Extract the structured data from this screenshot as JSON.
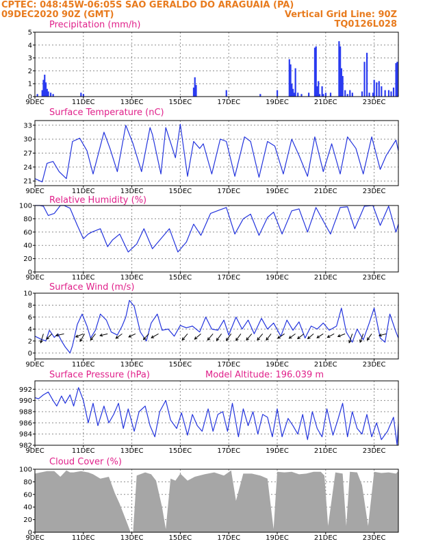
{
  "header": {
    "left_line1": "CPTEC:   048:45W-06:05S  SAO GERALDO DO ARAGUAIA (PA)",
    "left_line2": "09DEC2020 90Z (GMT)",
    "right_line2": "Vertical Grid Line: 90Z",
    "right_line3": "TQ0126L028"
  },
  "x_tick_labels": [
    "9DEC",
    "11DEC",
    "13DEC",
    "15DEC",
    "17DEC",
    "19DEC",
    "21DEC",
    "23DEC"
  ],
  "colors": {
    "header": "#e87b1e",
    "title": "#e0208a",
    "line": "#2233dd",
    "bar": "#2a3bf0",
    "cloud": "#a6a6a6",
    "arrow": "#000000"
  },
  "chart_data": [
    {
      "id": "precipitation",
      "type": "bar",
      "title": "Precipitation (mm/h)",
      "x_range": [
        9,
        24
      ],
      "ylim": [
        0,
        5
      ],
      "yticks": [
        0,
        1,
        2,
        3,
        4,
        5
      ],
      "grid": true,
      "x": [
        9.1,
        9.3,
        9.35,
        9.4,
        9.45,
        9.5,
        9.55,
        9.65,
        9.75,
        10.9,
        11.0,
        15.55,
        15.6,
        15.65,
        16.9,
        18.3,
        19.0,
        19.5,
        19.55,
        19.6,
        19.65,
        19.7,
        19.75,
        19.85,
        20.0,
        20.3,
        20.55,
        20.6,
        20.65,
        20.7,
        20.75,
        20.85,
        20.9,
        21.0,
        21.2,
        21.55,
        21.6,
        21.65,
        21.7,
        21.8,
        21.9,
        22.0,
        22.1,
        22.5,
        22.6,
        22.7,
        22.8,
        22.95,
        23.0,
        23.1,
        23.2,
        23.3,
        23.45,
        23.6,
        23.7,
        23.8,
        23.9,
        23.95
      ],
      "values": [
        0.2,
        0.5,
        1.3,
        1.7,
        1.1,
        0.6,
        0.4,
        0.3,
        0.2,
        0.3,
        0.2,
        0.7,
        1.5,
        0.9,
        0.5,
        0.2,
        0.5,
        2.9,
        2.5,
        1.0,
        0.6,
        0.3,
        2.2,
        0.3,
        0.2,
        0.3,
        3.8,
        3.9,
        0.8,
        1.2,
        0.2,
        0.8,
        0.2,
        0.3,
        0.3,
        4.3,
        3.9,
        2.2,
        1.6,
        0.5,
        0.2,
        0.5,
        0.3,
        0.4,
        2.7,
        3.4,
        0.3,
        0.3,
        1.3,
        1.1,
        1.2,
        0.8,
        0.5,
        0.5,
        0.4,
        0.7,
        2.6,
        2.7
      ]
    },
    {
      "id": "temperature",
      "type": "line",
      "title": "Surface Temperature (nC)",
      "x_range": [
        9,
        24
      ],
      "ylim": [
        20,
        34
      ],
      "yticks": [
        21,
        24,
        27,
        30,
        33
      ],
      "grid": true,
      "x": [
        9.0,
        9.3,
        9.5,
        9.75,
        10.0,
        10.3,
        10.55,
        10.85,
        11.15,
        11.4,
        11.7,
        11.85,
        12.1,
        12.4,
        12.75,
        13.05,
        13.4,
        13.75,
        13.85,
        14.2,
        14.4,
        14.8,
        15.0,
        15.3,
        15.55,
        15.8,
        15.95,
        16.3,
        16.65,
        16.9,
        17.25,
        17.65,
        17.9,
        18.25,
        18.6,
        18.9,
        19.25,
        19.6,
        19.9,
        20.25,
        20.55,
        20.9,
        21.25,
        21.6,
        21.9,
        22.25,
        22.55,
        22.9,
        23.25,
        23.5,
        23.9,
        24.0
      ],
      "values": [
        21.5,
        20.8,
        24.8,
        25.2,
        23.0,
        21.5,
        29.5,
        30.2,
        27.5,
        22.5,
        28.5,
        31.5,
        28.0,
        23.0,
        33.0,
        29.0,
        23.0,
        32.5,
        31.0,
        22.5,
        32.5,
        26.0,
        33.2,
        22.0,
        29.5,
        28.0,
        29.0,
        22.5,
        30.0,
        29.5,
        22.0,
        30.5,
        29.5,
        21.8,
        29.5,
        28.5,
        22.5,
        30.0,
        26.5,
        22.0,
        30.5,
        23.0,
        29.0,
        22.5,
        30.5,
        28.0,
        22.5,
        30.5,
        23.5,
        26.5,
        29.8,
        27.5
      ]
    },
    {
      "id": "humidity",
      "type": "line",
      "title": "Relative Humidity (%)",
      "x_range": [
        9,
        24
      ],
      "ylim": [
        0,
        100
      ],
      "yticks": [
        0,
        20,
        40,
        60,
        80,
        100
      ],
      "grid": true,
      "x": [
        9.0,
        9.2,
        9.35,
        9.55,
        9.8,
        10.05,
        10.2,
        10.45,
        10.75,
        11.0,
        11.2,
        11.35,
        11.7,
        12.0,
        12.2,
        12.5,
        12.85,
        13.2,
        13.5,
        13.85,
        14.2,
        14.55,
        14.9,
        15.25,
        15.55,
        15.85,
        16.25,
        16.6,
        16.9,
        17.25,
        17.6,
        17.9,
        18.25,
        18.6,
        18.85,
        19.2,
        19.6,
        19.9,
        20.25,
        20.6,
        20.85,
        21.2,
        21.6,
        21.9,
        22.2,
        22.6,
        22.95,
        23.25,
        23.6,
        23.9,
        24.0
      ],
      "values": [
        100,
        100,
        99,
        85,
        88,
        100,
        100,
        96,
        70,
        50,
        57,
        60,
        65,
        38,
        48,
        57,
        30,
        42,
        65,
        35,
        50,
        65,
        30,
        45,
        72,
        55,
        88,
        93,
        97,
        57,
        80,
        87,
        55,
        82,
        90,
        57,
        92,
        95,
        60,
        97,
        80,
        57,
        97,
        98,
        65,
        99,
        100,
        70,
        99,
        60,
        72
      ]
    },
    {
      "id": "wind",
      "type": "line",
      "title": "Surface Wind (m/s)",
      "x_range": [
        9,
        24
      ],
      "ylim": [
        -1,
        10
      ],
      "yticks": [
        0,
        2,
        4,
        6,
        8,
        10
      ],
      "grid": true,
      "x": [
        9.0,
        9.25,
        9.45,
        9.6,
        9.8,
        9.95,
        10.1,
        10.25,
        10.45,
        10.55,
        10.75,
        10.95,
        11.15,
        11.3,
        11.5,
        11.7,
        11.95,
        12.15,
        12.4,
        12.6,
        12.75,
        12.9,
        13.1,
        13.35,
        13.6,
        13.8,
        14.05,
        14.25,
        14.5,
        14.75,
        15.0,
        15.25,
        15.5,
        15.8,
        16.05,
        16.3,
        16.55,
        16.8,
        17.0,
        17.3,
        17.55,
        17.8,
        18.05,
        18.35,
        18.6,
        18.85,
        19.15,
        19.4,
        19.65,
        19.9,
        20.15,
        20.4,
        20.65,
        20.9,
        21.15,
        21.45,
        21.65,
        21.85,
        22.1,
        22.3,
        22.55,
        22.8,
        23.0,
        23.25,
        23.45,
        23.65,
        23.9,
        24.0
      ],
      "values": [
        2.8,
        2.3,
        2.0,
        3.8,
        2.6,
        3.2,
        2.0,
        1.0,
        0.0,
        1.2,
        4.8,
        6.5,
        4.5,
        2.5,
        3.8,
        6.5,
        5.5,
        3.5,
        3.0,
        4.5,
        6.0,
        8.8,
        7.8,
        3.5,
        2.0,
        5.0,
        6.5,
        3.8,
        4.0,
        2.8,
        4.6,
        4.2,
        4.5,
        3.5,
        6.0,
        4.0,
        3.8,
        5.5,
        3.0,
        6.0,
        4.0,
        5.5,
        3.2,
        5.8,
        4.0,
        5.0,
        2.8,
        5.5,
        3.8,
        5.2,
        2.5,
        4.5,
        4.0,
        5.0,
        3.8,
        4.5,
        7.5,
        3.5,
        1.8,
        4.0,
        2.2,
        5.0,
        7.5,
        2.5,
        1.8,
        6.5,
        3.5,
        2.5
      ],
      "arrows": [
        {
          "x": 9.35,
          "u": 0.3,
          "v": 1.0
        },
        {
          "x": 9.7,
          "u": 0.6,
          "v": 0.6
        },
        {
          "x": 10.2,
          "u": 0.9,
          "v": 0.2
        },
        {
          "x": 11.0,
          "u": 0.85,
          "v": 0.35
        },
        {
          "x": 11.05,
          "u": 0.5,
          "v": 0.85
        },
        {
          "x": 11.5,
          "u": 0.55,
          "v": 0.7
        },
        {
          "x": 12.0,
          "u": 0.85,
          "v": 0.2
        },
        {
          "x": 12.6,
          "u": 0.7,
          "v": 0.5
        },
        {
          "x": 13.15,
          "u": 0.75,
          "v": 0.35
        },
        {
          "x": 13.7,
          "u": 0.6,
          "v": 0.65
        },
        {
          "x": 14.1,
          "u": 0.8,
          "v": 0.45
        },
        {
          "x": 15.3,
          "u": 0.6,
          "v": 0.7
        },
        {
          "x": 15.85,
          "u": 0.7,
          "v": 0.6
        },
        {
          "x": 16.35,
          "u": 0.6,
          "v": 0.7
        },
        {
          "x": 16.7,
          "u": 0.55,
          "v": 0.75
        },
        {
          "x": 17.1,
          "u": 0.55,
          "v": 0.75
        },
        {
          "x": 17.5,
          "u": 0.55,
          "v": 0.75
        },
        {
          "x": 17.95,
          "u": 0.6,
          "v": 0.7
        },
        {
          "x": 18.4,
          "u": 0.6,
          "v": 0.7
        },
        {
          "x": 18.75,
          "u": 0.55,
          "v": 0.7
        },
        {
          "x": 19.3,
          "u": 0.75,
          "v": 0.5
        },
        {
          "x": 19.75,
          "u": 0.7,
          "v": 0.5
        },
        {
          "x": 20.1,
          "u": 0.7,
          "v": 0.55
        },
        {
          "x": 20.5,
          "u": 0.65,
          "v": 0.55
        },
        {
          "x": 20.9,
          "u": 0.7,
          "v": 0.45
        },
        {
          "x": 21.35,
          "u": 0.75,
          "v": 0.4
        },
        {
          "x": 21.8,
          "u": 0.8,
          "v": 0.3
        },
        {
          "x": 22.1,
          "u": 0.35,
          "v": 1.0
        },
        {
          "x": 22.55,
          "u": 0.35,
          "v": 0.95
        },
        {
          "x": 22.9,
          "u": 0.5,
          "v": 0.7
        },
        {
          "x": 23.5,
          "u": 0.8,
          "v": 0.2
        }
      ]
    },
    {
      "id": "pressure",
      "type": "line",
      "title": "Surface Pressure (hPa)",
      "annotation": "Model Altitude: 196.039 m",
      "x_range": [
        9,
        24
      ],
      "ylim": [
        982,
        993.5
      ],
      "yticks": [
        982,
        984,
        986,
        988,
        990,
        992
      ],
      "grid": true,
      "x": [
        9.0,
        9.15,
        9.35,
        9.55,
        9.75,
        9.9,
        10.1,
        10.25,
        10.45,
        10.6,
        10.8,
        11.0,
        11.2,
        11.4,
        11.6,
        11.85,
        12.05,
        12.25,
        12.45,
        12.65,
        12.85,
        13.1,
        13.3,
        13.55,
        13.75,
        13.95,
        14.15,
        14.4,
        14.6,
        14.85,
        15.05,
        15.3,
        15.5,
        15.7,
        15.9,
        16.15,
        16.35,
        16.55,
        16.75,
        16.95,
        17.15,
        17.4,
        17.6,
        17.8,
        18.0,
        18.2,
        18.4,
        18.6,
        18.8,
        19.0,
        19.2,
        19.45,
        19.65,
        19.85,
        20.05,
        20.25,
        20.45,
        20.65,
        20.85,
        21.05,
        21.3,
        21.5,
        21.7,
        21.9,
        22.1,
        22.3,
        22.5,
        22.7,
        22.9,
        23.1,
        23.3,
        23.55,
        23.8,
        23.95,
        24.0
      ],
      "values": [
        990.5,
        990.3,
        991.0,
        991.5,
        990.0,
        989.0,
        990.8,
        989.5,
        991.0,
        989.0,
        992.3,
        990.0,
        986.0,
        989.5,
        985.5,
        989.0,
        986.0,
        987.5,
        989.5,
        985.0,
        988.5,
        984.5,
        988.0,
        989.0,
        985.5,
        983.5,
        988.0,
        990.0,
        986.5,
        985.0,
        987.8,
        983.8,
        987.5,
        985.5,
        984.5,
        988.5,
        984.5,
        987.5,
        988.0,
        984.5,
        989.5,
        983.5,
        988.5,
        985.5,
        988.0,
        984.0,
        987.5,
        987.0,
        983.5,
        988.5,
        983.5,
        986.8,
        985.5,
        984.0,
        987.5,
        983.0,
        988.0,
        985.0,
        983.5,
        988.5,
        983.8,
        986.5,
        989.5,
        983.5,
        988.0,
        985.0,
        984.0,
        987.5,
        983.5,
        986.0,
        983.0,
        984.5,
        987.0,
        981.8,
        985.8
      ]
    },
    {
      "id": "cloud_cover",
      "type": "area",
      "title": "Cloud Cover (%)",
      "x_range": [
        9,
        24
      ],
      "ylim": [
        0,
        100
      ],
      "yticks": [
        0,
        20,
        40,
        60,
        80,
        100
      ],
      "grid": true,
      "x": [
        9.0,
        9.5,
        9.8,
        10.05,
        10.3,
        10.45,
        10.6,
        10.9,
        11.2,
        11.4,
        11.7,
        12.05,
        12.3,
        12.5,
        12.75,
        12.95,
        13.05,
        13.2,
        13.55,
        13.8,
        14.0,
        14.25,
        14.4,
        14.6,
        14.8,
        15.0,
        15.3,
        15.6,
        16.0,
        16.4,
        16.8,
        17.1,
        17.3,
        17.6,
        17.95,
        18.3,
        18.6,
        18.85,
        19.0,
        19.3,
        19.6,
        19.9,
        20.2,
        20.5,
        20.8,
        20.95,
        21.1,
        21.4,
        21.7,
        21.85,
        22.0,
        22.3,
        22.5,
        22.75,
        23.0,
        23.3,
        23.6,
        23.9,
        24.0
      ],
      "values": [
        93,
        97,
        97,
        88,
        98,
        95,
        95,
        97,
        95,
        92,
        85,
        88,
        62,
        45,
        20,
        0,
        0,
        90,
        95,
        92,
        82,
        40,
        5,
        85,
        82,
        93,
        82,
        88,
        92,
        95,
        90,
        98,
        50,
        93,
        93,
        90,
        85,
        5,
        96,
        95,
        96,
        92,
        93,
        96,
        96,
        90,
        10,
        95,
        93,
        10,
        96,
        95,
        75,
        10,
        96,
        94,
        95,
        93,
        97
      ]
    }
  ]
}
